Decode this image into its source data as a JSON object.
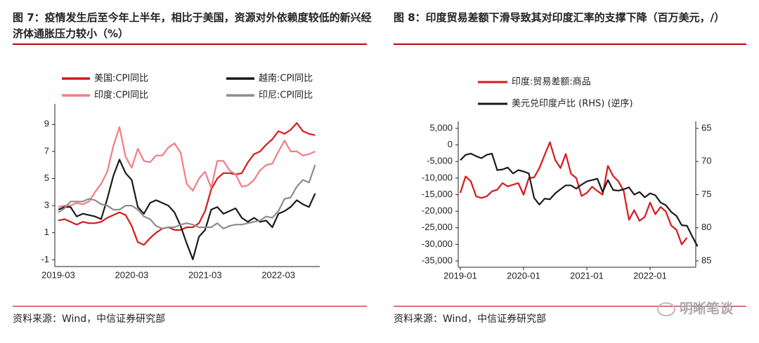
{
  "watermark": "明晰笔谈",
  "chart_data": [
    {
      "type": "line",
      "title": "图 7：疫情发生后至今年上半年，相比于美国，资源对外依赖度较低的新兴经济体通胀压力较小（%）",
      "source": "资料来源：Wind，中信证券研究部",
      "x": [
        "2019-03",
        "2019-04",
        "2019-05",
        "2019-06",
        "2019-07",
        "2019-08",
        "2019-09",
        "2019-10",
        "2019-11",
        "2019-12",
        "2020-01",
        "2020-02",
        "2020-03",
        "2020-04",
        "2020-05",
        "2020-06",
        "2020-07",
        "2020-08",
        "2020-09",
        "2020-10",
        "2020-11",
        "2020-12",
        "2021-01",
        "2021-02",
        "2021-03",
        "2021-04",
        "2021-05",
        "2021-06",
        "2021-07",
        "2021-08",
        "2021-09",
        "2021-10",
        "2021-11",
        "2021-12",
        "2022-01",
        "2022-02",
        "2022-03",
        "2022-04",
        "2022-05",
        "2022-06",
        "2022-07",
        "2022-08",
        "2022-09"
      ],
      "xticks": [
        "2019-03",
        "2020-03",
        "2021-03",
        "2022-03"
      ],
      "ylim": [
        -1.5,
        10
      ],
      "yticks": [
        -1,
        1,
        3,
        5,
        7,
        9
      ],
      "series": [
        {
          "name": "美国:CPI同比",
          "color": "#d7191c",
          "values": [
            1.9,
            2.0,
            1.8,
            1.6,
            1.8,
            1.7,
            1.7,
            1.8,
            2.1,
            2.3,
            2.5,
            2.3,
            1.5,
            0.3,
            0.1,
            0.6,
            1.0,
            1.3,
            1.4,
            1.2,
            1.2,
            1.4,
            1.4,
            1.7,
            2.6,
            4.2,
            5.0,
            5.4,
            5.4,
            5.3,
            5.4,
            6.2,
            6.8,
            7.0,
            7.5,
            7.9,
            8.5,
            8.3,
            8.6,
            9.1,
            8.5,
            8.3,
            8.2
          ]
        },
        {
          "name": "越南:CPI同比",
          "color": "#1a1a1a",
          "values": [
            2.7,
            2.9,
            2.9,
            2.2,
            2.4,
            2.3,
            2.2,
            2.0,
            3.5,
            5.2,
            6.4,
            5.4,
            4.9,
            2.9,
            2.4,
            3.2,
            3.4,
            3.2,
            3.0,
            2.5,
            1.5,
            0.2,
            -0.97,
            0.7,
            1.2,
            2.7,
            2.9,
            2.4,
            2.6,
            2.8,
            2.1,
            1.8,
            2.1,
            1.8,
            1.9,
            1.4,
            2.4,
            2.6,
            2.9,
            3.4,
            3.1,
            2.9,
            3.9
          ]
        },
        {
          "name": "印度:CPI同比",
          "color": "#f27c86",
          "values": [
            2.9,
            3.0,
            3.0,
            3.2,
            3.1,
            3.3,
            4.0,
            4.6,
            5.5,
            7.4,
            8.8,
            6.6,
            5.8,
            7.2,
            6.3,
            6.2,
            6.7,
            6.7,
            7.3,
            7.6,
            6.9,
            4.6,
            4.1,
            5.0,
            5.5,
            4.3,
            6.3,
            6.3,
            5.6,
            5.3,
            4.4,
            4.5,
            4.9,
            5.6,
            6.0,
            6.1,
            7.0,
            7.8,
            7.0,
            7.0,
            6.7,
            6.8,
            7.0
          ]
        },
        {
          "name": "印尼:CPI同比",
          "color": "#8c8c8c",
          "values": [
            2.5,
            2.8,
            3.3,
            3.3,
            3.3,
            3.5,
            3.4,
            3.1,
            3.0,
            2.7,
            2.7,
            3.0,
            3.0,
            2.7,
            2.2,
            2.0,
            1.5,
            1.3,
            1.4,
            1.4,
            1.6,
            1.7,
            1.6,
            1.4,
            1.4,
            1.4,
            1.7,
            1.3,
            1.5,
            1.6,
            1.6,
            1.7,
            1.8,
            1.9,
            2.2,
            2.1,
            2.6,
            3.5,
            3.6,
            4.4,
            4.9,
            4.7,
            6.0
          ]
        }
      ]
    },
    {
      "type": "line",
      "title": "图 8：印度贸易差额下滑导致其对印度汇率的支撑下降（百万美元，/）",
      "source": "资料来源：Wind，中信证券研究部",
      "x": [
        "2019-01",
        "2019-02",
        "2019-03",
        "2019-04",
        "2019-05",
        "2019-06",
        "2019-07",
        "2019-08",
        "2019-09",
        "2019-10",
        "2019-11",
        "2019-12",
        "2020-01",
        "2020-02",
        "2020-03",
        "2020-04",
        "2020-05",
        "2020-06",
        "2020-07",
        "2020-08",
        "2020-09",
        "2020-10",
        "2020-11",
        "2020-12",
        "2021-01",
        "2021-02",
        "2021-03",
        "2021-04",
        "2021-05",
        "2021-06",
        "2021-07",
        "2021-08",
        "2021-09",
        "2021-10",
        "2021-11",
        "2021-12",
        "2022-01",
        "2022-02",
        "2022-03",
        "2022-04",
        "2022-05",
        "2022-06",
        "2022-07",
        "2022-08",
        "2022-09",
        "2022-10"
      ],
      "xticks": [
        "2019-01",
        "2020-01",
        "2021-01",
        "2022-01"
      ],
      "ylim": [
        -35000,
        5000
      ],
      "yticks": [
        {
          "value": 5000,
          "label": "5,000"
        },
        0,
        {
          "value": -5000,
          "label": "-5,000"
        },
        {
          "value": -10000,
          "label": "-10,000"
        },
        {
          "value": -15000,
          "label": "-15,000"
        },
        {
          "value": -20000,
          "label": "-20,000"
        },
        {
          "value": -25000,
          "label": "-25,000"
        },
        {
          "value": -30000,
          "label": "-30,000"
        },
        {
          "value": -35000,
          "label": "-35,000"
        }
      ],
      "y2lim": [
        85,
        65
      ],
      "y2ticks": [
        65,
        70,
        75,
        80,
        85
      ],
      "series": [
        {
          "name": "印度:贸易差额:商品",
          "color": "#d7191c",
          "values": [
            -14500,
            -9500,
            -11000,
            -15500,
            -16000,
            -15500,
            -14000,
            -13500,
            -11500,
            -12500,
            -12000,
            -11500,
            -15000,
            -10000,
            -9800,
            -7000,
            -3000,
            800,
            -4500,
            -7000,
            -2700,
            -8700,
            -10000,
            -15400,
            -14500,
            -12600,
            -13900,
            -15000,
            -6300,
            -9400,
            -11000,
            -13900,
            -22600,
            -19700,
            -22900,
            -21700,
            -17400,
            -20900,
            -18700,
            -20100,
            -24300,
            -25600,
            -30000,
            -28000,
            null,
            null
          ]
        },
        {
          "name": "美元兑印度卢比 (RHS) (逆序)",
          "color": "#1a1a1a",
          "axis": "y2",
          "values": [
            69.8,
            69.0,
            68.8,
            69.2,
            69.5,
            69.0,
            68.8,
            71.3,
            71.2,
            70.9,
            71.8,
            71.3,
            71.5,
            71.8,
            75.5,
            76.5,
            75.6,
            75.7,
            74.8,
            74.2,
            73.6,
            73.6,
            74.1,
            73.5,
            73.0,
            72.8,
            72.6,
            74.6,
            72.8,
            74.3,
            74.4,
            74.2,
            73.9,
            75.0,
            74.6,
            75.4,
            74.8,
            75.1,
            76.2,
            76.6,
            77.6,
            78.2,
            79.6,
            79.7,
            81.3,
            82.8
          ]
        }
      ]
    }
  ]
}
